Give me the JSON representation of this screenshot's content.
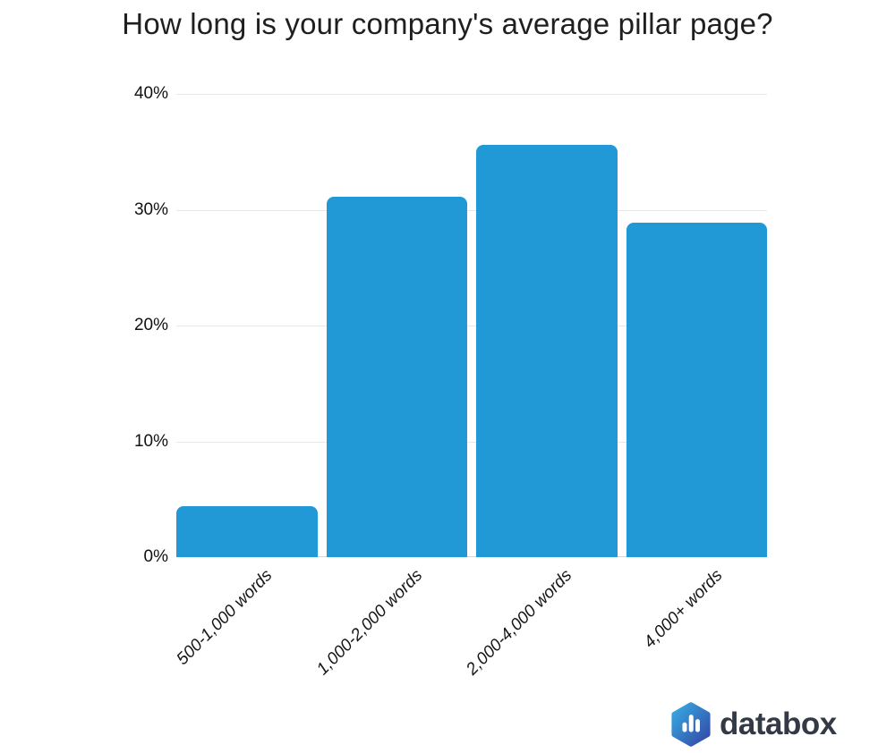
{
  "title": "How long is your company's average pillar page?",
  "chart_data": {
    "type": "bar",
    "title": "How long is your company's average pillar page?",
    "categories": [
      "500-1,000 words",
      "1,000-2,000 words",
      "2,000-4,000 words",
      "4,000+ words"
    ],
    "values": [
      4.4,
      31.1,
      35.6,
      28.9
    ],
    "xlabel": "",
    "ylabel": "",
    "ylim": [
      0,
      40
    ],
    "yticks": [
      {
        "value": 0,
        "label": "0%"
      },
      {
        "value": 10,
        "label": "10%"
      },
      {
        "value": 20,
        "label": "20%"
      },
      {
        "value": 30,
        "label": "30%"
      },
      {
        "value": 40,
        "label": "40%"
      }
    ],
    "grid": true,
    "legend": false,
    "bar_color": "#2199d6"
  },
  "footer": {
    "logo_text": "databox",
    "logo_icon": "databox-hexagon-bars-icon",
    "logo_text_color": "#343a45",
    "logo_gradient_start": "#36ace3",
    "logo_gradient_end": "#3347a5",
    "logo_bars_color": "#ffffff"
  },
  "colors": {
    "background": "#ffffff",
    "bar": "#2199d6",
    "gridline": "#e7e7e7",
    "axis_line": "#d8d8d8",
    "title_text": "#1f1f1f",
    "tick_text": "#111111"
  }
}
